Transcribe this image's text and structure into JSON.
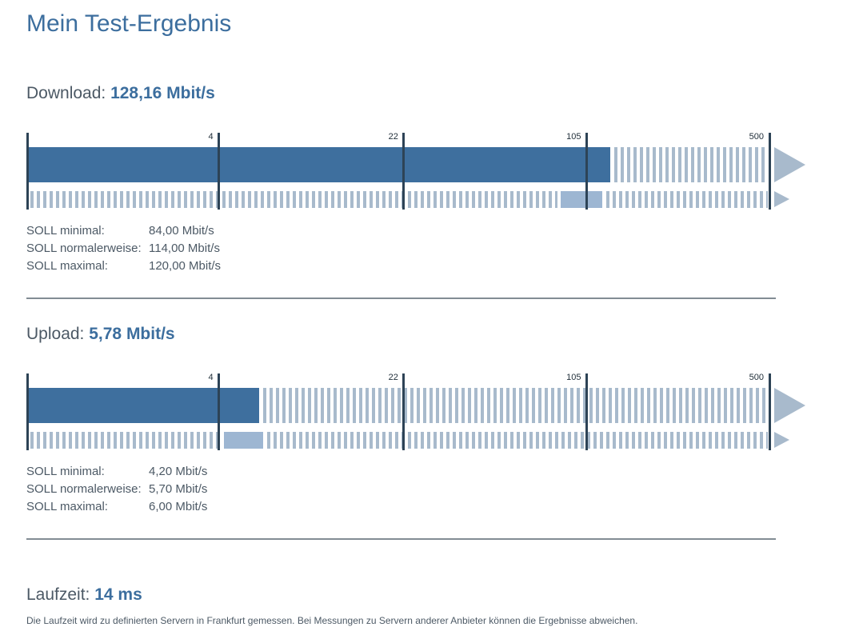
{
  "title": "Mein Test-Ergebnis",
  "colors": {
    "accent": "#3c6e9e",
    "text": "#4c5965",
    "bar": "#3e6f9e",
    "stripe": "#a8bacc",
    "segment": "#9db6d2",
    "line": "#2d4356"
  },
  "download": {
    "label": "Download:",
    "value_text": "128,16 Mbit/s",
    "soll": [
      {
        "label": "SOLL minimal:",
        "value": "84,00 Mbit/s"
      },
      {
        "label": "SOLL normalerweise:",
        "value": "114,00 Mbit/s"
      },
      {
        "label": "SOLL maximal:",
        "value": "120,00 Mbit/s"
      }
    ]
  },
  "upload": {
    "label": "Upload:",
    "value_text": "5,78 Mbit/s",
    "soll": [
      {
        "label": "SOLL minimal:",
        "value": "4,20 Mbit/s"
      },
      {
        "label": "SOLL normalerweise:",
        "value": "5,70 Mbit/s"
      },
      {
        "label": "SOLL maximal:",
        "value": "6,00 Mbit/s"
      }
    ]
  },
  "latency": {
    "label": "Laufzeit:",
    "value_text": "14 ms",
    "note": "Die Laufzeit wird zu definierten Servern in Frankfurt gemessen. Bei Messungen zu Servern anderer Anbieter können die Ergebnisse abweichen."
  },
  "chart_data": [
    {
      "type": "bar",
      "name": "download",
      "title": "Download",
      "unit": "Mbit/s",
      "scale": "log",
      "axis_ticks": [
        4,
        22,
        105,
        500
      ],
      "tick_percents": [
        25.9,
        50.8,
        75.4,
        100
      ],
      "measured": 128.16,
      "soll_minimal": 84.0,
      "soll_normal": 114.0,
      "soll_maximal": 120.0,
      "layout": {
        "main_bar": "measured value solid, remainder striped to 500",
        "sub_bar": "striped with solid segment from soll_minimal to soll_maximal",
        "arrows": "right-pointing beyond 500"
      }
    },
    {
      "type": "bar",
      "name": "upload",
      "title": "Upload",
      "unit": "Mbit/s",
      "scale": "log",
      "axis_ticks": [
        4,
        22,
        105,
        500
      ],
      "tick_percents": [
        25.9,
        50.8,
        75.4,
        100
      ],
      "measured": 5.78,
      "soll_minimal": 4.2,
      "soll_normal": 5.7,
      "soll_maximal": 6.0,
      "layout": {
        "main_bar": "measured value solid, remainder striped to 500",
        "sub_bar": "striped with solid segment from soll_minimal to soll_maximal",
        "arrows": "right-pointing beyond 500"
      }
    }
  ]
}
